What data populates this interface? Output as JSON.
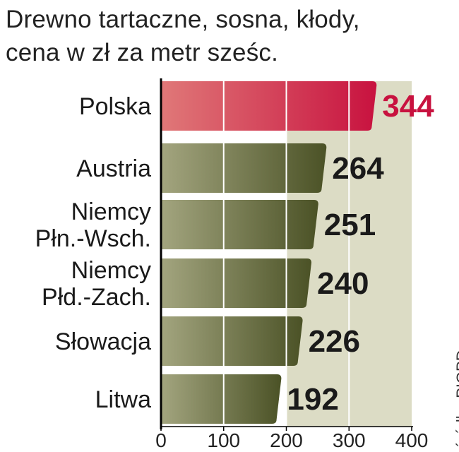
{
  "header": {
    "title_line1": "Drewno tartaczne, sosna, kłody,",
    "title_line2": "cena w zł za metr sześc."
  },
  "source": "źródło: PIGPD",
  "colors": {
    "highlight_bar_light": "#e07878",
    "highlight_bar_dark": "#c8123f",
    "highlight_value": "#c8123f",
    "bar_light": "#a3a57f",
    "bar_dark": "#4b5226",
    "plot_background": "#dcdcc5",
    "grid": "#ffffff",
    "axis": "#000000"
  },
  "chart_data": {
    "type": "bar",
    "orientation": "horizontal",
    "title": "Drewno tartaczne, sosna, kłody, cena w zł za metr sześc.",
    "categories": [
      [
        "Polska"
      ],
      [
        "Austria"
      ],
      [
        "Niemcy",
        "Płn.-Wsch."
      ],
      [
        "Niemcy",
        "Płd.-Zach."
      ],
      [
        "Słowacja"
      ],
      [
        "Litwa"
      ]
    ],
    "values": [
      344,
      264,
      251,
      240,
      226,
      192
    ],
    "value_labels": [
      "344",
      "264",
      "251",
      "240",
      "226",
      "192"
    ],
    "highlight_index": 0,
    "xlim": [
      0,
      400
    ],
    "xticks": [
      0,
      100,
      200,
      300,
      400
    ],
    "xtick_labels": [
      "0",
      "100",
      "200",
      "300",
      "400"
    ],
    "grid": true,
    "legend": "none"
  }
}
